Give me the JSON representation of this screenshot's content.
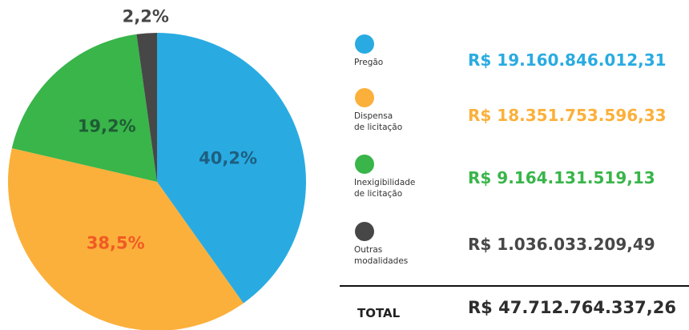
{
  "chart_data": {
    "type": "pie",
    "categories": [
      "Pregão",
      "Dispensa\nde licitação",
      "Inexigibilidade\nde licitação",
      "Outras\nmodalidades"
    ],
    "values": [
      40.2,
      38.5,
      19.2,
      2.2
    ],
    "value_labels": [
      "40,2%",
      "38,5%",
      "19,2%",
      "2,2%"
    ],
    "colors": [
      "#29abe2",
      "#fbb03b",
      "#39b54a",
      "#474747"
    ],
    "label_colors": [
      "#1d5f80",
      "#f15a24",
      "#1e5c34",
      "#474747"
    ],
    "amounts": [
      "R$ 19.160.846.012,31",
      "R$ 18.351.753.596,33",
      "R$ 9.164.131.519,13",
      "R$ 1.036.033.209,49"
    ],
    "total": {
      "label": "TOTAL",
      "value": "R$ 47.712.764.337,26"
    }
  }
}
